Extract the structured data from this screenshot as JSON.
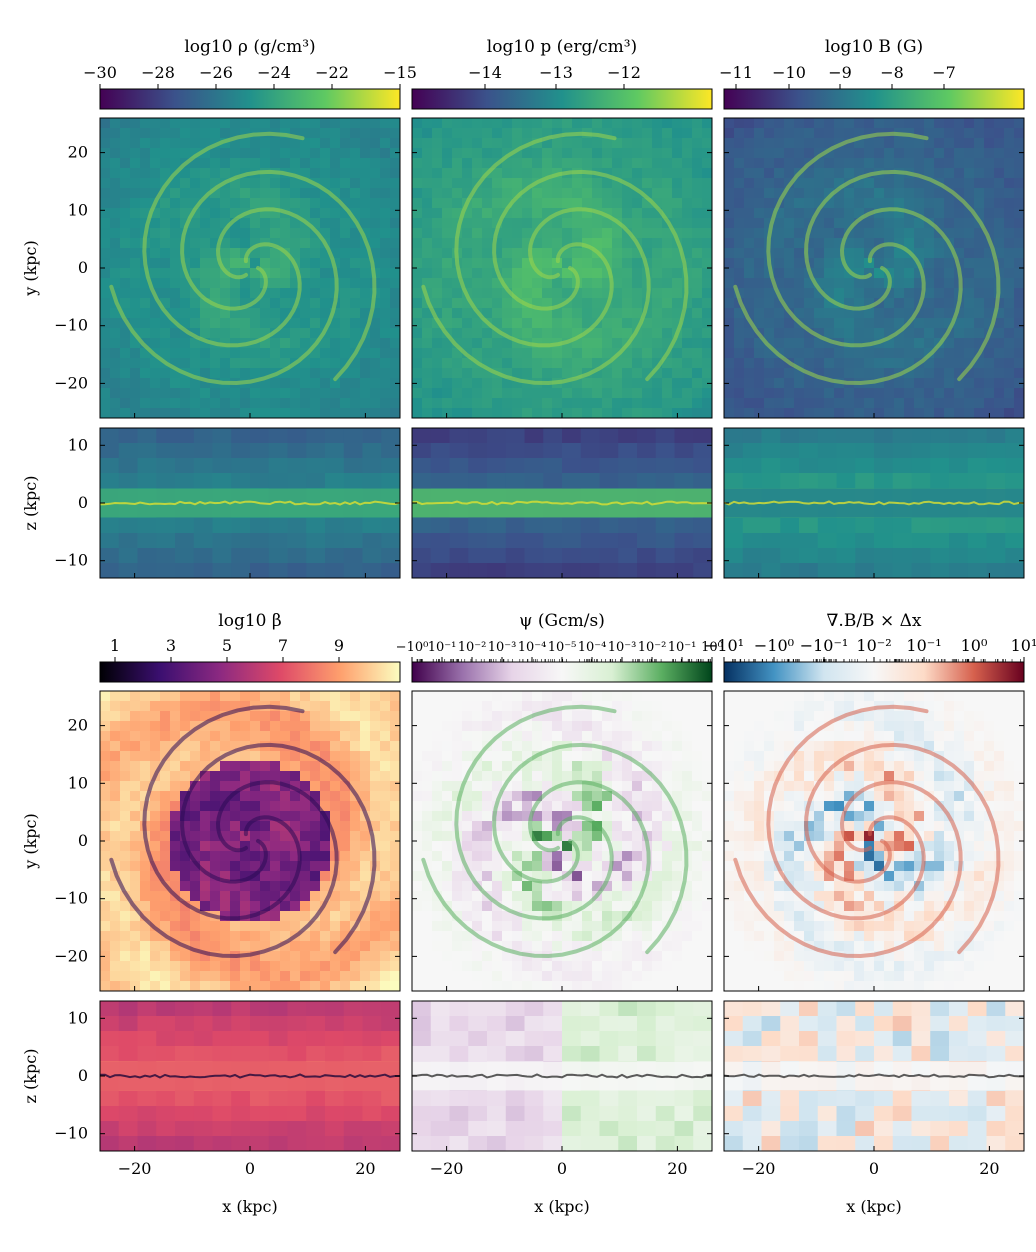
{
  "chart_data": [
    {
      "type": "heatmap",
      "title": "log10 ρ (g/cm³)",
      "cbar_ticks": [
        "−30",
        "−28",
        "−26",
        "−24",
        "−22",
        "−15"
      ],
      "colormap": "viridis",
      "face_on": {
        "xlim": [
          -26,
          26
        ],
        "ylim": [
          -26,
          26
        ],
        "ylabel": "y (kpc)",
        "yticks": [
          "20",
          "10",
          "0",
          "−10",
          "−20"
        ],
        "xticks": []
      },
      "edge_on": {
        "xlim": [
          -26,
          26
        ],
        "zlim": [
          -13,
          13
        ],
        "ylabel": "z (kpc)",
        "yticks": [
          "10",
          "0",
          "−10"
        ],
        "xticks": []
      }
    },
    {
      "type": "heatmap",
      "title": "log10 p (erg/cm³)",
      "cbar_ticks": [
        "−14",
        "−13",
        "−12"
      ],
      "colormap": "viridis",
      "face_on": {
        "xlim": [
          -26,
          26
        ],
        "ylim": [
          -26,
          26
        ]
      },
      "edge_on": {
        "xlim": [
          -26,
          26
        ],
        "zlim": [
          -13,
          13
        ]
      }
    },
    {
      "type": "heatmap",
      "title": "log10 B (G)",
      "cbar_ticks": [
        "−11",
        "−10",
        "−9",
        "−8",
        "−7"
      ],
      "colormap": "viridis",
      "face_on": {
        "xlim": [
          -26,
          26
        ],
        "ylim": [
          -26,
          26
        ]
      },
      "edge_on": {
        "xlim": [
          -26,
          26
        ],
        "zlim": [
          -13,
          13
        ]
      }
    },
    {
      "type": "heatmap",
      "title": "log10 β",
      "cbar_ticks": [
        "1",
        "3",
        "5",
        "7",
        "9"
      ],
      "colormap": "magma",
      "face_on": {
        "xlim": [
          -26,
          26
        ],
        "ylim": [
          -26,
          26
        ],
        "ylabel": "y (kpc)",
        "yticks": [
          "20",
          "10",
          "0",
          "−10",
          "−20"
        ]
      },
      "edge_on": {
        "xlim": [
          -26,
          26
        ],
        "zlim": [
          -13,
          13
        ],
        "ylabel": "z (kpc)",
        "yticks": [
          "10",
          "0",
          "−10"
        ],
        "xticks": [
          "−20",
          "0",
          "20"
        ],
        "xlabel": "x (kpc)"
      }
    },
    {
      "type": "heatmap",
      "title": "ψ (Gcm/s)",
      "cbar_ticks": [
        "−10⁰",
        "10⁻¹",
        "10⁻²",
        "10⁻³",
        "10⁻⁴",
        "10⁻⁵",
        "10⁻⁴",
        "10⁻³",
        "10⁻²",
        "10⁻¹",
        "10⁰"
      ],
      "colormap": "PRGn",
      "face_on": {
        "xlim": [
          -26,
          26
        ],
        "ylim": [
          -26,
          26
        ]
      },
      "edge_on": {
        "xlim": [
          -26,
          26
        ],
        "zlim": [
          -13,
          13
        ],
        "xticks": [
          "−20",
          "0",
          "20"
        ],
        "xlabel": "x (kpc)"
      }
    },
    {
      "type": "heatmap",
      "title": "∇.B/B × Δx",
      "cbar_ticks": [
        "−10¹",
        "−10⁰",
        "−10⁻¹",
        "10⁻²",
        "10⁻¹",
        "10⁰",
        "10¹"
      ],
      "colormap": "RdBu_r",
      "face_on": {
        "xlim": [
          -26,
          26
        ],
        "ylim": [
          -26,
          26
        ]
      },
      "edge_on": {
        "xlim": [
          -26,
          26
        ],
        "zlim": [
          -13,
          13
        ],
        "xticks": [
          "−20",
          "0",
          "20"
        ],
        "xlabel": "x (kpc)"
      }
    }
  ],
  "colors": {
    "viridis": [
      "#440154",
      "#3b528b",
      "#21918c",
      "#5ec962",
      "#fde725"
    ],
    "magma": [
      "#000004",
      "#3b0f70",
      "#8c2981",
      "#de4968",
      "#fe9f6d",
      "#fcfdbf"
    ],
    "PRGn": [
      "#40004b",
      "#9970ab",
      "#e7d4e8",
      "#f7f7f7",
      "#d9f0d3",
      "#5aae61",
      "#00441b"
    ],
    "RdBu_r": [
      "#053061",
      "#4393c3",
      "#d1e5f0",
      "#f7f7f7",
      "#fddbc7",
      "#d6604d",
      "#67001f"
    ]
  }
}
